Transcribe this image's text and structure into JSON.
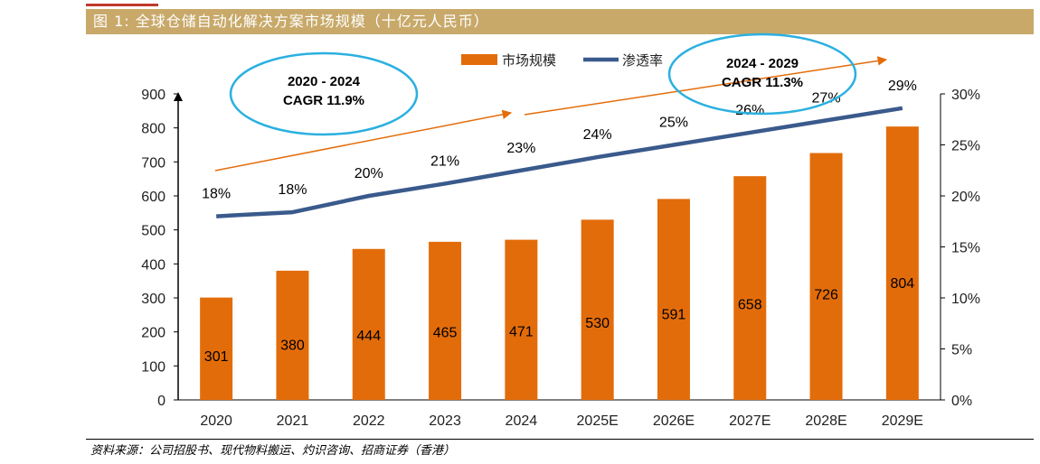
{
  "header": {
    "title": "图 1:  全球仓储自动化解决方案市场规模（十亿元人民币）"
  },
  "source": "资料来源：公司招股书、现代物料搬运、灼识咨询、招商证券（香港）",
  "colors": {
    "bar": "#e36c0a",
    "line": "#3a5a8c",
    "arrow": "#e36c0a",
    "ellipse": "#2bb0e0",
    "header": "#c8a96a"
  },
  "chart_data": {
    "type": "bar",
    "categories": [
      "2020",
      "2021",
      "2022",
      "2023",
      "2024",
      "2025E",
      "2026E",
      "2027E",
      "2028E",
      "2029E"
    ],
    "series": [
      {
        "name": "市场规模",
        "type": "bar",
        "axis": "left",
        "values": [
          301,
          380,
          444,
          465,
          471,
          530,
          591,
          658,
          726,
          804
        ]
      },
      {
        "name": "渗透率",
        "type": "line",
        "axis": "right",
        "values": [
          18,
          18.4,
          20,
          21.2,
          22.5,
          23.8,
          25,
          26.2,
          27.4,
          28.6
        ],
        "labels": [
          "18%",
          "18%",
          "20%",
          "21%",
          "23%",
          "24%",
          "25%",
          "26%",
          "27%",
          "29%"
        ]
      }
    ],
    "y_left": {
      "min": 0,
      "max": 900,
      "ticks": [
        "0",
        "100",
        "200",
        "300",
        "400",
        "500",
        "600",
        "700",
        "800",
        "900"
      ]
    },
    "y_right": {
      "min": 0,
      "max": 30,
      "ticks": [
        "0%",
        "5%",
        "10%",
        "15%",
        "20%",
        "25%",
        "30%"
      ]
    },
    "annotations": [
      {
        "line1": "2020 - 2024",
        "line2": "CAGR 11.9%"
      },
      {
        "line1": "2024 - 2029",
        "line2": "CAGR 11.3%"
      }
    ],
    "legend_position": "top-center"
  }
}
